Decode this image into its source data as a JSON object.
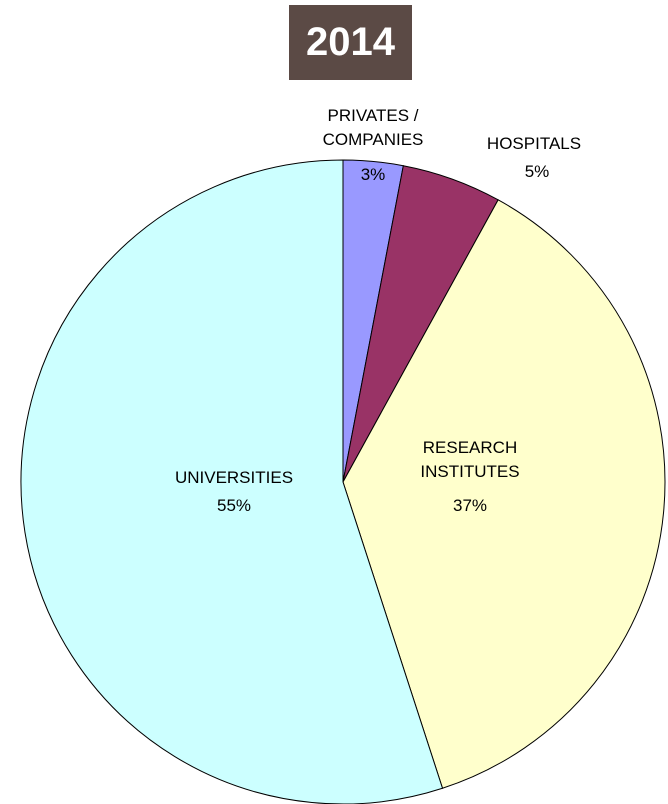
{
  "chart_data": {
    "type": "pie",
    "title": "2014",
    "categories": [
      "PRIVATES /\nCOMPANIES",
      "HOSPITALS",
      "RESEARCH\nINSTITUTES",
      "UNIVERSITIES"
    ],
    "values": [
      3,
      5,
      37,
      55
    ],
    "value_labels": [
      "3%",
      "5%",
      "37%",
      "55%"
    ],
    "colors": [
      "#9999ff",
      "#993366",
      "#ffffcc",
      "#ccffff"
    ]
  }
}
